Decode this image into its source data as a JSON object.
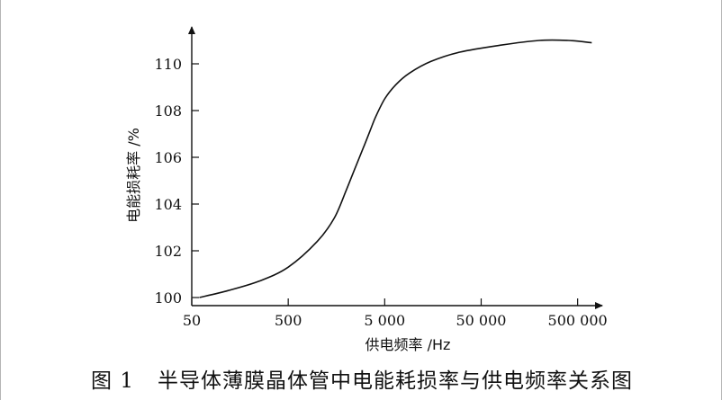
{
  "chart_data": {
    "type": "line",
    "title": "",
    "xlabel": "供电频率 /Hz",
    "ylabel": "电能损耗率 /%",
    "x_scale": "log",
    "xlim": [
      50,
      900000
    ],
    "ylim": [
      100,
      111.5
    ],
    "x_ticks": [
      50,
      500,
      5000,
      50000,
      500000
    ],
    "x_tick_labels": [
      "50",
      "500",
      "5 000",
      "50 000",
      "500 000"
    ],
    "y_ticks": [
      100,
      102,
      104,
      106,
      108,
      110
    ],
    "y_tick_labels": [
      "100",
      "102",
      "104",
      "106",
      "108",
      "110"
    ],
    "grid": false,
    "series": [
      {
        "color": "#111111",
        "x": [
          60,
          120,
          250,
          500,
          1000,
          1500,
          2000,
          2500,
          3000,
          3500,
          4000,
          5000,
          6500,
          9000,
          15000,
          30000,
          80000,
          200000,
          400000,
          700000
        ],
        "y": [
          100.0,
          100.3,
          100.7,
          101.3,
          102.4,
          103.4,
          104.6,
          105.6,
          106.4,
          107.1,
          107.7,
          108.5,
          109.1,
          109.6,
          110.1,
          110.5,
          110.8,
          111.0,
          111.0,
          110.9
        ]
      }
    ]
  },
  "caption": {
    "figure_number": "图 1",
    "text": "半导体薄膜晶体管中电能耗损率与供电频率关系图"
  }
}
